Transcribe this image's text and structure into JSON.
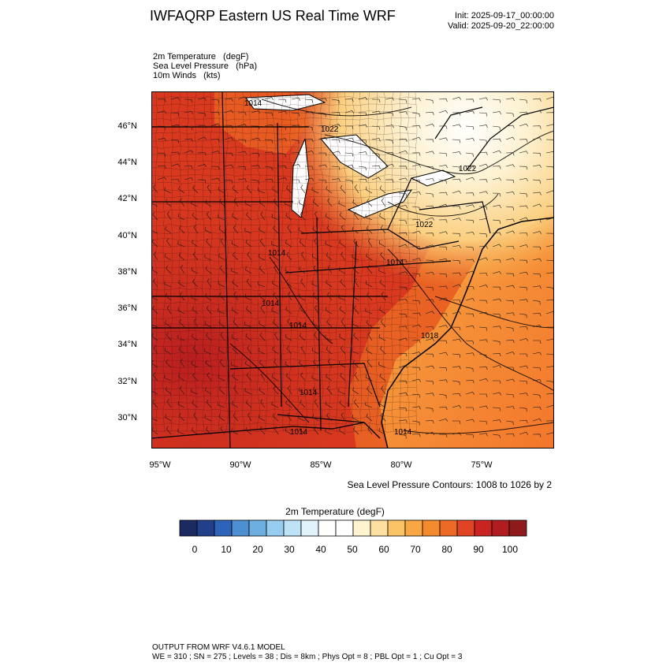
{
  "header": {
    "title": "IWFAQRP Eastern US Real Time WRF",
    "init": "Init: 2025-09-17_00:00:00",
    "valid": "Valid: 2025-09-20_22:00:00"
  },
  "fields": {
    "f1": "2m Temperature   (degF)",
    "f2": "Sea Level Pressure   (hPa)",
    "f3": "10m Winds   (kts)"
  },
  "map": {
    "lat_labels": [
      "46°N",
      "44°N",
      "42°N",
      "40°N",
      "38°N",
      "36°N",
      "34°N",
      "32°N",
      "30°N"
    ],
    "lon_labels": [
      "95°W",
      "90°W",
      "85°W",
      "80°W",
      "75°W"
    ],
    "pressure_labels": [
      "1014",
      "1022",
      "1022",
      "1022",
      "1014",
      "1014",
      "1014",
      "1014",
      "1018",
      "1014",
      "1014",
      "1014"
    ]
  },
  "contour_note": "Sea Level Pressure Contours: 1008 to 1026 by 2",
  "colorbar": {
    "title": "2m Temperature  (degF)",
    "ticks": [
      "0",
      "10",
      "20",
      "30",
      "40",
      "50",
      "60",
      "70",
      "80",
      "90",
      "100"
    ],
    "colors": [
      "#1b2a60",
      "#223f8a",
      "#2d63b8",
      "#4d8fd1",
      "#6eafe2",
      "#97cdf0",
      "#bfe3f6",
      "#e2f2fb",
      "#ffffff",
      "#ffffff",
      "#fff4cf",
      "#fde0a0",
      "#fbc266",
      "#f8a742",
      "#f38a2d",
      "#ec6a25",
      "#e04424",
      "#c92422",
      "#b01c20",
      "#8f1a1c"
    ]
  },
  "footer": {
    "line1": "OUTPUT FROM WRF V4.6.1 MODEL",
    "line2": "WE = 310 ; SN = 275 ; Levels = 38 ; Dis = 8km ; Phys Opt = 8 ; PBL Opt = 1 ; Cu Opt = 3"
  },
  "colors": {
    "hot": "#c0231f",
    "warm": "#e85a22",
    "mild": "#f7a642",
    "cool": "#fde3a6",
    "ocean": "#f47f30"
  }
}
